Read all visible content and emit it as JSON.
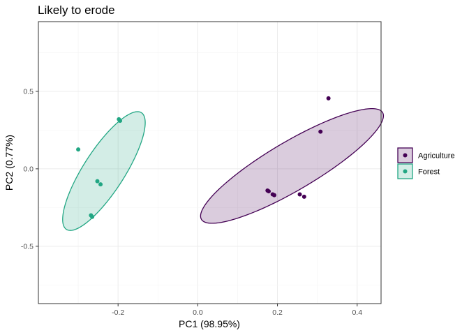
{
  "chart_data": {
    "type": "scatter",
    "title": "Likely to erode",
    "xlabel": "PC1 (98.95%)",
    "ylabel": "PC2 (0.77%)",
    "xlim": [
      -0.4,
      0.46
    ],
    "ylim": [
      -0.87,
      0.95
    ],
    "x_ticks": [
      -0.2,
      0.0,
      0.2,
      0.4
    ],
    "x_tick_labels": [
      "-0.2",
      "0.0",
      "0.2",
      "0.4"
    ],
    "y_ticks": [
      -0.5,
      0.0,
      0.5
    ],
    "y_tick_labels": [
      "-0.5",
      "0.0",
      "0.5"
    ],
    "grid": true,
    "legend_position": "right",
    "series": [
      {
        "name": "Agriculture",
        "color": "#440154",
        "fill": "#440154",
        "points": [
          {
            "x": 0.328,
            "y": 0.455
          },
          {
            "x": 0.308,
            "y": 0.24
          },
          {
            "x": 0.175,
            "y": -0.14
          },
          {
            "x": 0.178,
            "y": -0.145
          },
          {
            "x": 0.188,
            "y": -0.165
          },
          {
            "x": 0.192,
            "y": -0.17
          },
          {
            "x": 0.256,
            "y": -0.165
          },
          {
            "x": 0.267,
            "y": -0.18
          }
        ],
        "ellipse": {
          "cx": 0.2365,
          "cy": 0.0185,
          "rx": 0.4245,
          "ry": 0.0973,
          "angle_deg": 59.8
        }
      },
      {
        "name": "Forest",
        "color": "#21A683",
        "fill": "#21A683",
        "points": [
          {
            "x": -0.3,
            "y": 0.125
          },
          {
            "x": -0.252,
            "y": -0.08
          },
          {
            "x": -0.244,
            "y": -0.1
          },
          {
            "x": -0.268,
            "y": -0.3
          },
          {
            "x": -0.265,
            "y": -0.31
          },
          {
            "x": -0.198,
            "y": 0.32
          },
          {
            "x": -0.195,
            "y": 0.31
          }
        ],
        "ellipse": {
          "cx": -0.2355,
          "cy": -0.0145,
          "rx": 0.3928,
          "ry": 0.0587,
          "angle_deg": 77.3
        }
      }
    ]
  }
}
